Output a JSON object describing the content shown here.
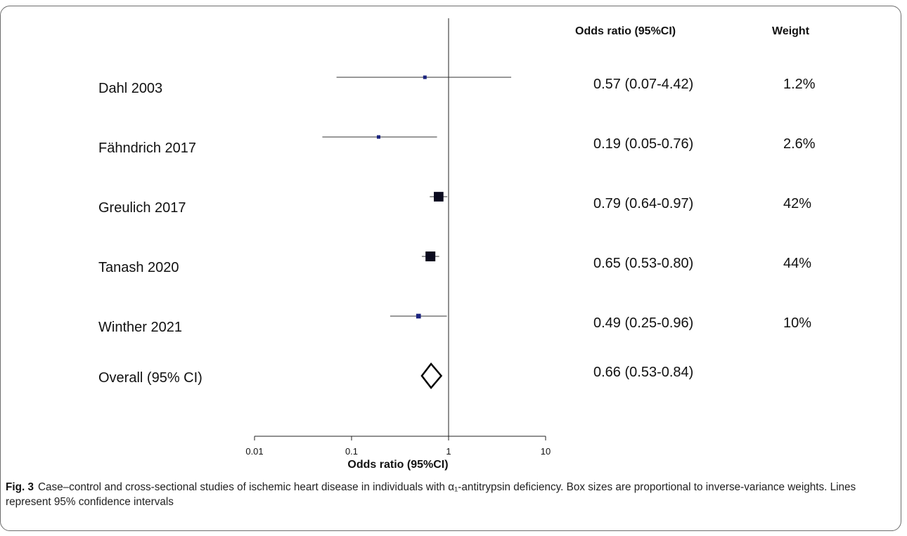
{
  "chart_data": {
    "type": "forest",
    "column_headers": {
      "odds_ratio": "Odds ratio (95%CI)",
      "weight": "Weight"
    },
    "xlabel": "Odds ratio (95%CI)",
    "x_scale": "log",
    "xlim": [
      0.01,
      10
    ],
    "ticks": [
      {
        "value": 0.01,
        "label": "0.01"
      },
      {
        "value": 0.1,
        "label": "0.1"
      },
      {
        "value": 1,
        "label": "1"
      },
      {
        "value": 10,
        "label": "10"
      }
    ],
    "reference_line": 1,
    "marker_color": "#1a237e",
    "studies": [
      {
        "label": "Dahl 2003",
        "or": 0.57,
        "lo": 0.07,
        "hi": 4.42,
        "text": "0.57 (0.07-4.42)",
        "weight_text": "1.2%",
        "weight": 1.2
      },
      {
        "label": "Fähndrich 2017",
        "or": 0.19,
        "lo": 0.05,
        "hi": 0.76,
        "text": "0.19 (0.05-0.76)",
        "weight_text": "2.6%",
        "weight": 2.6
      },
      {
        "label": "Greulich 2017",
        "or": 0.79,
        "lo": 0.64,
        "hi": 0.97,
        "text": "0.79 (0.64-0.97)",
        "weight_text": "42%",
        "weight": 42
      },
      {
        "label": "Tanash 2020",
        "or": 0.65,
        "lo": 0.53,
        "hi": 0.8,
        "text": "0.65 (0.53-0.80)",
        "weight_text": "44%",
        "weight": 44
      },
      {
        "label": "Winther 2021",
        "or": 0.49,
        "lo": 0.25,
        "hi": 0.96,
        "text": "0.49 (0.25-0.96)",
        "weight_text": "10%",
        "weight": 10
      }
    ],
    "overall": {
      "label": "Overall (95% CI)",
      "or": 0.66,
      "lo": 0.53,
      "hi": 0.84,
      "text": "0.66 (0.53-0.84)"
    }
  },
  "caption": {
    "fig_label": "Fig. 3",
    "text": "Case–control and cross-sectional studies of ischemic heart disease in individuals with α₁-antitrypsin deficiency. Box sizes are proportional to inverse-variance weights. Lines represent 95% confidence intervals"
  }
}
